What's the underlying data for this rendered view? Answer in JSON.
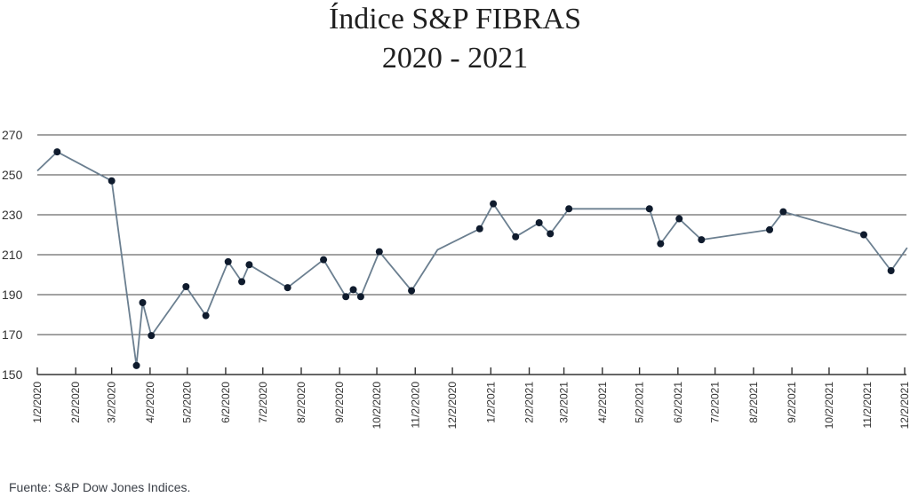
{
  "chart_data": {
    "type": "line",
    "title": "Índice S&P FIBRAS",
    "subtitle": "2020 - 2021",
    "source": "Fuente: S&P Dow Jones Indices.",
    "ylim": [
      150,
      270
    ],
    "yticks": [
      150,
      170,
      190,
      210,
      230,
      250,
      270
    ],
    "xlim": [
      "2020-01-02",
      "2021-12-02"
    ],
    "xticks": [
      "1/2/2020",
      "2/2/2020",
      "3/2/2020",
      "4/2/2020",
      "5/2/2020",
      "6/2/2020",
      "7/2/2020",
      "8/2/2020",
      "9/2/2020",
      "10/2/2020",
      "11/2/2020",
      "12/2/2020",
      "1/2/2021",
      "2/2/2021",
      "3/2/2021",
      "4/2/2021",
      "5/2/2021",
      "6/2/2021",
      "7/2/2021",
      "8/2/2021",
      "9/2/2021",
      "10/2/2021",
      "11/2/2021",
      "12/2/2021"
    ],
    "grid": "horizontal",
    "colors": {
      "line": "#6b7f90",
      "marker": "#0f1b2d",
      "grid": "#444444",
      "axis": "#333333"
    },
    "series": [
      {
        "points": [
          {
            "x": "2020-01-02",
            "y": 252,
            "marker": false
          },
          {
            "x": "2020-01-18",
            "y": 261.5,
            "marker": true
          },
          {
            "x": "2020-03-02",
            "y": 247,
            "marker": true
          },
          {
            "x": "2020-03-22",
            "y": 154.5,
            "marker": true
          },
          {
            "x": "2020-03-27",
            "y": 186,
            "marker": true
          },
          {
            "x": "2020-04-03",
            "y": 169.5,
            "marker": true
          },
          {
            "x": "2020-05-01",
            "y": 194,
            "marker": true
          },
          {
            "x": "2020-05-17",
            "y": 179.5,
            "marker": true
          },
          {
            "x": "2020-06-04",
            "y": 206.5,
            "marker": true
          },
          {
            "x": "2020-06-15",
            "y": 196.5,
            "marker": true
          },
          {
            "x": "2020-06-21",
            "y": 205,
            "marker": true
          },
          {
            "x": "2020-07-22",
            "y": 193.5,
            "marker": true
          },
          {
            "x": "2020-08-20",
            "y": 207.5,
            "marker": true
          },
          {
            "x": "2020-09-07",
            "y": 189,
            "marker": true
          },
          {
            "x": "2020-09-13",
            "y": 192.5,
            "marker": true
          },
          {
            "x": "2020-09-19",
            "y": 189,
            "marker": true
          },
          {
            "x": "2020-10-04",
            "y": 211.5,
            "marker": true
          },
          {
            "x": "2020-10-30",
            "y": 192,
            "marker": true
          },
          {
            "x": "2020-11-20",
            "y": 212.5,
            "marker": false
          },
          {
            "x": "2020-12-24",
            "y": 223,
            "marker": true
          },
          {
            "x": "2021-01-04",
            "y": 235.5,
            "marker": true
          },
          {
            "x": "2021-01-22",
            "y": 219,
            "marker": true
          },
          {
            "x": "2021-02-10",
            "y": 226,
            "marker": true
          },
          {
            "x": "2021-02-19",
            "y": 220.5,
            "marker": true
          },
          {
            "x": "2021-03-06",
            "y": 233,
            "marker": true
          },
          {
            "x": "2021-05-10",
            "y": 233,
            "marker": true
          },
          {
            "x": "2021-05-19",
            "y": 215.5,
            "marker": true
          },
          {
            "x": "2021-06-03",
            "y": 228,
            "marker": true
          },
          {
            "x": "2021-06-21",
            "y": 217.5,
            "marker": true
          },
          {
            "x": "2021-08-15",
            "y": 222.5,
            "marker": true
          },
          {
            "x": "2021-08-26",
            "y": 231.5,
            "marker": true
          },
          {
            "x": "2021-10-30",
            "y": 220,
            "marker": true
          },
          {
            "x": "2021-11-21",
            "y": 202,
            "marker": true
          },
          {
            "x": "2021-12-04",
            "y": 213.5,
            "marker": false
          }
        ]
      }
    ]
  }
}
